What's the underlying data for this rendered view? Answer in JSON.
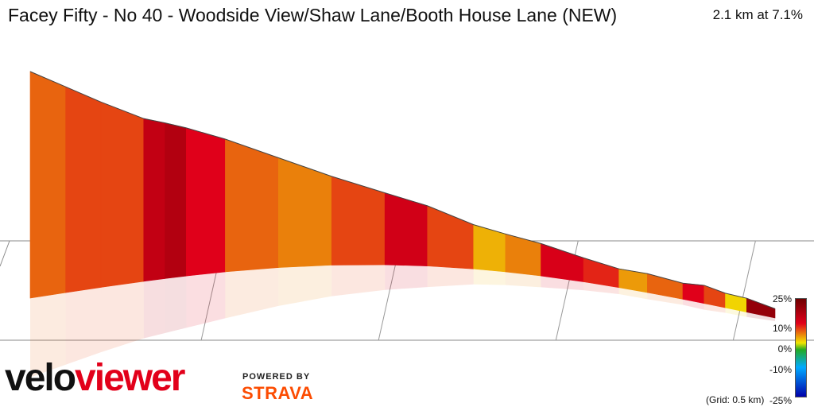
{
  "header": {
    "title": "Facey Fifty - No 40 - Woodside View/Shaw Lane/Booth House Lane (NEW)",
    "summary": "2.1 km at 7.1%"
  },
  "legend": {
    "ticks": [
      "25%",
      "10%",
      "0%",
      "-10%",
      "-25%"
    ],
    "grid_note": "(Grid: 0.5 km)",
    "colors": {
      "max": "#6e0000",
      "high": "#e0001a",
      "mid": "#f2e600",
      "zero": "#22aa22",
      "low": "#00aaff",
      "min": "#0000aa"
    }
  },
  "branding": {
    "logo_velo": "velo",
    "logo_viewer": "viewer",
    "powered_by": "POWERED BY",
    "strava": "STRAVA"
  },
  "chart_data": {
    "type": "area",
    "distance_km": 2.1,
    "average_gradient_pct": 7.1,
    "grid_spacing_km": 0.5,
    "gradient_scale_pct": [
      -25,
      25
    ],
    "segments": [
      {
        "from_km": 0.0,
        "to_km": 0.1,
        "elev": 0,
        "grad": 7
      },
      {
        "from_km": 0.1,
        "to_km": 0.2,
        "elev": 2,
        "grad": 8
      },
      {
        "from_km": 0.2,
        "to_km": 0.32,
        "elev": 4,
        "grad": 8
      },
      {
        "from_km": 0.32,
        "to_km": 0.38,
        "elev": 9,
        "grad": 14
      },
      {
        "from_km": 0.38,
        "to_km": 0.44,
        "elev": 17,
        "grad": 16
      },
      {
        "from_km": 0.44,
        "to_km": 0.55,
        "elev": 24,
        "grad": 10
      },
      {
        "from_km": 0.55,
        "to_km": 0.7,
        "elev": 34,
        "grad": 7
      },
      {
        "from_km": 0.7,
        "to_km": 0.85,
        "elev": 43,
        "grad": 6
      },
      {
        "from_km": 0.85,
        "to_km": 1.0,
        "elev": 52,
        "grad": 8
      },
      {
        "from_km": 1.0,
        "to_km": 1.12,
        "elev": 64,
        "grad": 12
      },
      {
        "from_km": 1.12,
        "to_km": 1.25,
        "elev": 74,
        "grad": 8
      },
      {
        "from_km": 1.25,
        "to_km": 1.34,
        "elev": 78,
        "grad": 4
      },
      {
        "from_km": 1.34,
        "to_km": 1.44,
        "elev": 86,
        "grad": 6
      },
      {
        "from_km": 1.44,
        "to_km": 1.56,
        "elev": 96,
        "grad": 11
      },
      {
        "from_km": 1.56,
        "to_km": 1.66,
        "elev": 104,
        "grad": 9
      },
      {
        "from_km": 1.66,
        "to_km": 1.74,
        "elev": 112,
        "grad": 5
      },
      {
        "from_km": 1.74,
        "to_km": 1.84,
        "elev": 124,
        "grad": 7
      },
      {
        "from_km": 1.84,
        "to_km": 1.9,
        "elev": 134,
        "grad": 10
      },
      {
        "from_km": 1.9,
        "to_km": 1.96,
        "elev": 145,
        "grad": 8
      },
      {
        "from_km": 1.96,
        "to_km": 2.02,
        "elev": 148,
        "grad": 2
      },
      {
        "from_km": 2.02,
        "to_km": 2.1,
        "elev": 155,
        "grad": 20
      }
    ]
  }
}
